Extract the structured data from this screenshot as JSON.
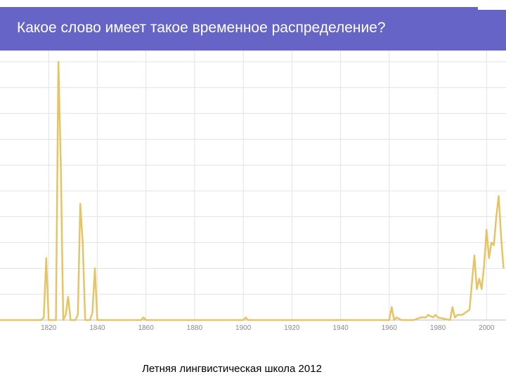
{
  "slide": {
    "title": "Какое слово имеет такое временное распределение?",
    "footer": "Летняя лингвистическая школа 2012"
  },
  "colors": {
    "header_bg": "#6764c8",
    "line": "#e6c466",
    "grid": "#e3e3e3",
    "axis": "#bdbdbd",
    "tick_text": "#8a8a8a"
  },
  "chart_data": {
    "type": "line",
    "title": "",
    "xlabel": "",
    "ylabel": "",
    "xlim": [
      1800,
      2008
    ],
    "ylim": [
      0,
      100
    ],
    "grid": true,
    "tick_labels": [
      "1820",
      "1840",
      "1860",
      "1880",
      "1900",
      "1920",
      "1940",
      "1960",
      "1980",
      "2000"
    ],
    "series": [
      {
        "name": "",
        "x": [
          1800,
          1817,
          1818,
          1819,
          1820,
          1822,
          1823,
          1824,
          1825,
          1826,
          1827,
          1828,
          1829,
          1831,
          1832,
          1833,
          1834,
          1835,
          1836,
          1837,
          1838,
          1839,
          1840,
          1841,
          1858,
          1859,
          1860,
          1900,
          1901,
          1902,
          1960,
          1961,
          1962,
          1963,
          1965,
          1970,
          1973,
          1975,
          1976,
          1978,
          1979,
          1980,
          1985,
          1986,
          1987,
          1988,
          1990,
          1993,
          1995,
          1996,
          1997,
          1998,
          1999,
          2000,
          2001,
          2002,
          2003,
          2004,
          2005,
          2006,
          2007
        ],
        "values": [
          0,
          0,
          1,
          24,
          0,
          0,
          0,
          100,
          60,
          0,
          2,
          9,
          0,
          0,
          2,
          45,
          30,
          0,
          0,
          0,
          3,
          20,
          0,
          0,
          0,
          1,
          0,
          0,
          1,
          0,
          0,
          5,
          0,
          1,
          0,
          0,
          1,
          1,
          2,
          1,
          2,
          1,
          0,
          5,
          1,
          2,
          2,
          4,
          25,
          12,
          16,
          12,
          21,
          35,
          24,
          30,
          29,
          40,
          48,
          32,
          20
        ]
      }
    ]
  }
}
